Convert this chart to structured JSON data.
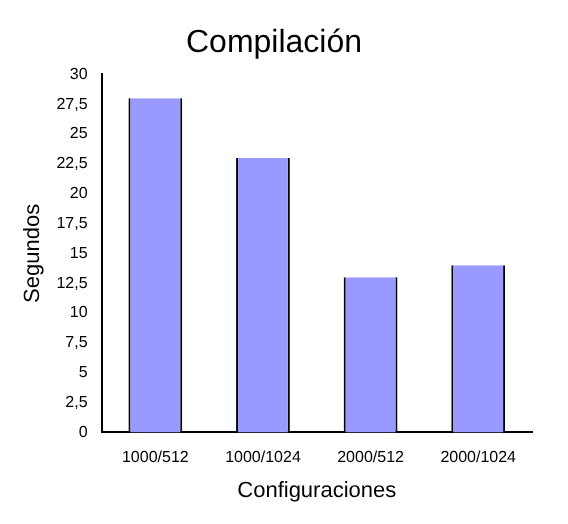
{
  "chart_data": {
    "type": "bar",
    "title": "Compilación",
    "xlabel": "Configuraciones",
    "ylabel": "Segundos",
    "categories": [
      "1000/512",
      "1000/1024",
      "2000/512",
      "2000/1024"
    ],
    "values": [
      28,
      23,
      13,
      14
    ],
    "color": "#9999ff",
    "ylim": [
      0,
      30
    ],
    "yticks": [
      0,
      {
        "value": 2.5,
        "label": "2,5"
      },
      5,
      {
        "value": 7.5,
        "label": "7,5"
      },
      10,
      {
        "value": 12.5,
        "label": "12,5"
      },
      15,
      {
        "value": 17.5,
        "label": "17,5"
      },
      20,
      {
        "value": 22.5,
        "label": "22,5"
      },
      25,
      {
        "value": 27.5,
        "label": "27,5"
      },
      30
    ],
    "grid": false,
    "legend": false
  }
}
